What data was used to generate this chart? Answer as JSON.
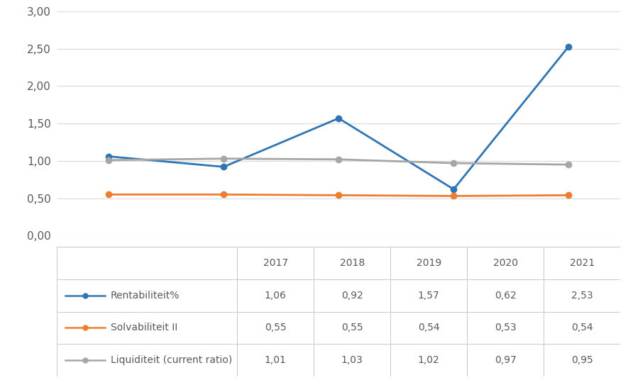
{
  "years": [
    2017,
    2018,
    2019,
    2020,
    2021
  ],
  "rentabiliteit": [
    1.06,
    0.92,
    1.57,
    0.62,
    2.53
  ],
  "solvabiliteit": [
    0.55,
    0.55,
    0.54,
    0.53,
    0.54
  ],
  "liquiditeit": [
    1.01,
    1.03,
    1.02,
    0.97,
    0.95
  ],
  "rentabiliteit_color": "#2e75b6",
  "solvabiliteit_color": "#ed7d31",
  "liquiditeit_color": "#a6a6a6",
  "ylim": [
    0.0,
    3.0
  ],
  "yticks": [
    0.0,
    0.5,
    1.0,
    1.5,
    2.0,
    2.5,
    3.0
  ],
  "ytick_labels": [
    "0,00",
    "0,50",
    "1,00",
    "1,50",
    "2,00",
    "2,50",
    "3,00"
  ],
  "background_color": "#ffffff",
  "grid_color": "#d9d9d9",
  "legend_labels": [
    "Rentabiliteit%",
    "Solvabiliteit II",
    "Liquiditeit (current ratio)"
  ],
  "table_values": [
    [
      1.06,
      0.92,
      1.57,
      0.62,
      2.53
    ],
    [
      0.55,
      0.55,
      0.54,
      0.53,
      0.54
    ],
    [
      1.01,
      1.03,
      1.02,
      0.97,
      0.95
    ]
  ],
  "marker_size": 6,
  "line_width": 2.0,
  "table_border_color": "#c8c8c8",
  "text_color": "#595959",
  "tick_label_fontsize": 11,
  "table_fontsize": 10
}
